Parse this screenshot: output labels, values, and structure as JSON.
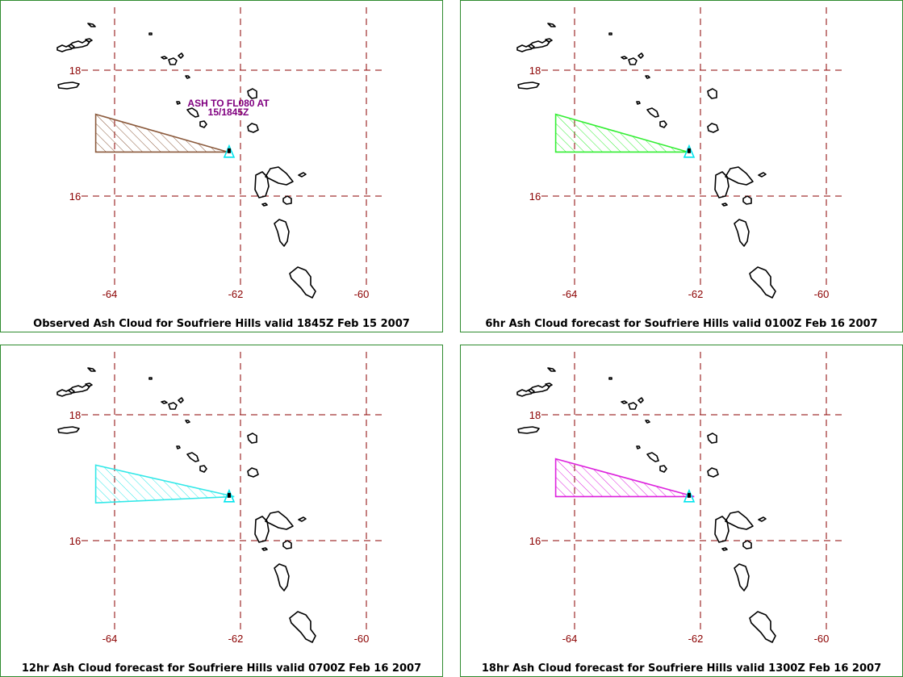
{
  "colors": {
    "panel_border": "#2e8b2e",
    "grid": "#8b0000",
    "axis_label": "#8b0000",
    "coast": "#000000",
    "volcano": "#00e5ee",
    "annotation": "#800080"
  },
  "axes": {
    "lat_labels": [
      "18",
      "16"
    ],
    "lon_labels": [
      "-64",
      "-62",
      "-60"
    ]
  },
  "panels": [
    {
      "caption": "Observed Ash Cloud for Soufriere  Hills valid 1845Z Feb 15 2007",
      "cloud_color": "#8b5a3c",
      "annotation_line1": "ASH TO FL080 AT",
      "annotation_line2": "15/1845Z",
      "ash_polygon": [
        [
          -64.3,
          17.3
        ],
        [
          -62.2,
          16.7
        ],
        [
          -64.3,
          16.7
        ]
      ]
    },
    {
      "caption": "6hr Ash Cloud forecast for Soufriere  Hills valid 0100Z Feb 16 2007",
      "cloud_color": "#33ee33",
      "annotation_line1": "",
      "annotation_line2": "",
      "ash_polygon": [
        [
          -64.3,
          17.3
        ],
        [
          -62.2,
          16.7
        ],
        [
          -64.3,
          16.7
        ]
      ]
    },
    {
      "caption": "12hr Ash Cloud forecast for Soufriere  Hills valid 0700Z Feb 16 2007",
      "cloud_color": "#33e8e8",
      "annotation_line1": "",
      "annotation_line2": "",
      "ash_polygon": [
        [
          -64.3,
          17.2
        ],
        [
          -62.1,
          16.7
        ],
        [
          -64.3,
          16.6
        ]
      ]
    },
    {
      "caption": "18hr Ash Cloud forecast for Soufriere  Hills valid 1300Z Feb 16 2007",
      "cloud_color": "#dd22dd",
      "annotation_line1": "",
      "annotation_line2": "",
      "ash_polygon": [
        [
          -64.3,
          17.3
        ],
        [
          -62.1,
          16.7
        ],
        [
          -64.3,
          16.7
        ]
      ]
    }
  ],
  "volcano": {
    "name": "Soufriere Hills",
    "lon": -62.18,
    "lat": 16.72
  }
}
